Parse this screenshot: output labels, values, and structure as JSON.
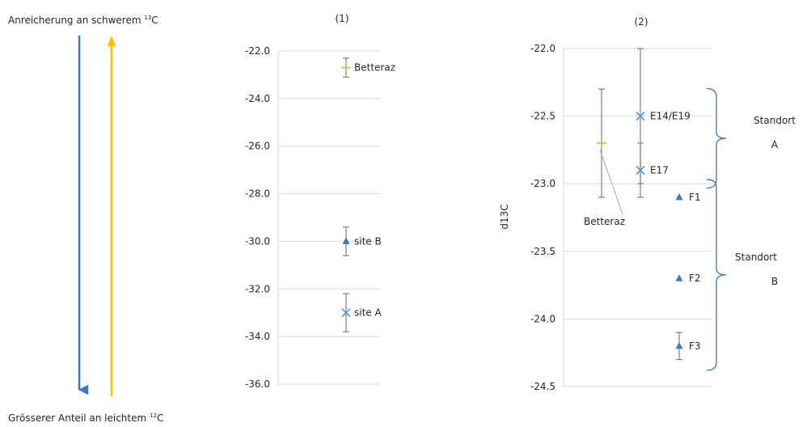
{
  "legend_arrows": {
    "top_text": "Anreicherung an schwerem ",
    "top_sup": "13",
    "top_suffix": "C",
    "bottom_text": "Grösserer Anteil an leichtem ",
    "bottom_sup": "12",
    "bottom_suffix": "C",
    "down_color": "#4472c4",
    "up_color": "#ffc000"
  },
  "chart_data": [
    {
      "type": "scatter",
      "title": "(1)",
      "xlabel": "",
      "ylabel": "",
      "ylim": [
        -36,
        -22
      ],
      "y_ticks": [
        "-22.0",
        "-24.0",
        "-26.0",
        "-28.0",
        "-30.0",
        "-32.0",
        "-34.0",
        "-36.0"
      ],
      "grid": true,
      "points": [
        {
          "label": "Betteraz",
          "y": -22.7,
          "err_low": -23.1,
          "err_high": -22.3,
          "marker": "plus",
          "color": "#92d050"
        },
        {
          "label": "site B",
          "y": -30.0,
          "err_low": -30.6,
          "err_high": -29.4,
          "marker": "triangle",
          "color": "#4472c4"
        },
        {
          "label": "site A",
          "y": -33.0,
          "err_low": -33.8,
          "err_high": -32.2,
          "marker": "x",
          "color": "#5b9bd5"
        }
      ]
    },
    {
      "type": "scatter",
      "title": "(2)",
      "xlabel": "",
      "ylabel": "d13C",
      "ylim": [
        -24.5,
        -22.0
      ],
      "y_ticks": [
        "-22.0",
        "-22.5",
        "-23.0",
        "-23.5",
        "-24.0",
        "-24.5"
      ],
      "grid": true,
      "points": [
        {
          "label": "Betteraz",
          "y": -22.7,
          "err_low": -23.1,
          "err_high": -22.3,
          "marker": "plus",
          "color": "#92d050"
        },
        {
          "label": "E14/E19",
          "y": -22.5,
          "err_low": -23.0,
          "err_high": -22.0,
          "marker": "x",
          "color": "#5b9bd5"
        },
        {
          "label": "E17",
          "y": -22.9,
          "err_low": -23.1,
          "err_high": -22.7,
          "marker": "x",
          "color": "#5b9bd5"
        },
        {
          "label": "F1",
          "y": -23.1,
          "marker": "triangle",
          "color": "#4472c4"
        },
        {
          "label": "F2",
          "y": -23.7,
          "marker": "triangle",
          "color": "#4472c4"
        },
        {
          "label": "F3",
          "y": -24.2,
          "err_low": -24.3,
          "err_high": -24.1,
          "marker": "triangle",
          "color": "#4472c4"
        }
      ],
      "groups": [
        {
          "name_line1": "Standort",
          "name_line2": "A",
          "members": [
            "E14/E19",
            "E17"
          ]
        },
        {
          "name_line1": "Standort",
          "name_line2": "B",
          "members": [
            "F1",
            "F2",
            "F3"
          ]
        }
      ]
    }
  ]
}
